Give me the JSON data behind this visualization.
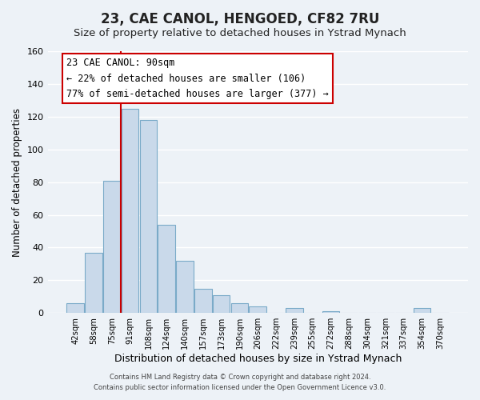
{
  "title": "23, CAE CANOL, HENGOED, CF82 7RU",
  "subtitle": "Size of property relative to detached houses in Ystrad Mynach",
  "xlabel": "Distribution of detached houses by size in Ystrad Mynach",
  "ylabel": "Number of detached properties",
  "bar_labels": [
    "42sqm",
    "58sqm",
    "75sqm",
    "91sqm",
    "108sqm",
    "124sqm",
    "140sqm",
    "157sqm",
    "173sqm",
    "190sqm",
    "206sqm",
    "222sqm",
    "239sqm",
    "255sqm",
    "272sqm",
    "288sqm",
    "304sqm",
    "321sqm",
    "337sqm",
    "354sqm",
    "370sqm"
  ],
  "bar_values": [
    6,
    37,
    81,
    125,
    118,
    54,
    32,
    15,
    11,
    6,
    4,
    0,
    3,
    0,
    1,
    0,
    0,
    0,
    0,
    3,
    0
  ],
  "bar_color": "#c9d9ea",
  "bar_edge_color": "#7aaac8",
  "vline_color": "#cc0000",
  "vline_x_index": 3,
  "ylim": [
    0,
    160
  ],
  "yticks": [
    0,
    20,
    40,
    60,
    80,
    100,
    120,
    140,
    160
  ],
  "annotation_title": "23 CAE CANOL: 90sqm",
  "annotation_line1": "← 22% of detached houses are smaller (106)",
  "annotation_line2": "77% of semi-detached houses are larger (377) →",
  "annotation_box_facecolor": "#ffffff",
  "annotation_box_edgecolor": "#cc0000",
  "footer_line1": "Contains HM Land Registry data © Crown copyright and database right 2024.",
  "footer_line2": "Contains public sector information licensed under the Open Government Licence v3.0.",
  "background_color": "#edf2f7",
  "grid_color": "#ffffff",
  "title_fontsize": 12,
  "subtitle_fontsize": 9.5,
  "ylabel_fontsize": 8.5,
  "xlabel_fontsize": 9
}
